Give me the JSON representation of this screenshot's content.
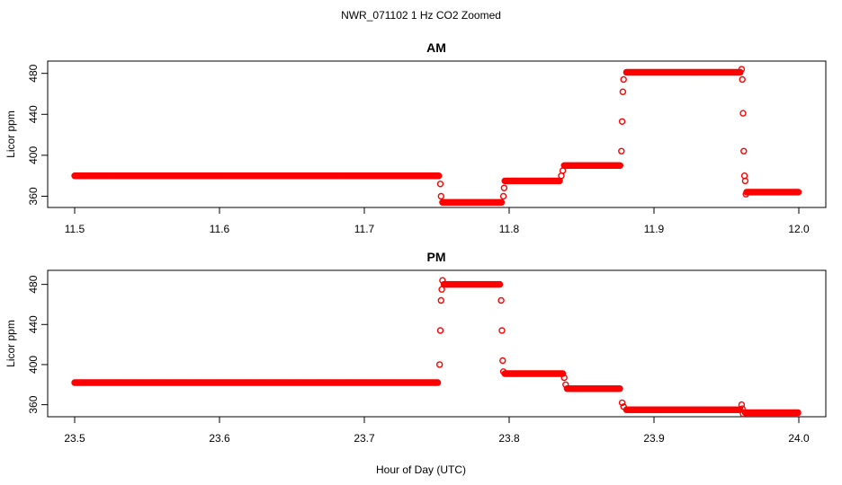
{
  "figure": {
    "title": "NWR_071102  1 Hz CO2 Zoomed",
    "xlabel": "Hour of Day (UTC)",
    "point_color": "#ff0000"
  },
  "chart_data": [
    {
      "type": "scatter",
      "title": "AM",
      "xlabel": "",
      "ylabel": "Licor ppm",
      "xlim": [
        11.5,
        12.0
      ],
      "ylim": [
        349,
        492
      ],
      "xticks": [
        "11.5",
        "11.6",
        "11.7",
        "11.8",
        "11.9",
        "12.0"
      ],
      "yticks": [
        "360",
        "400",
        "440",
        "480"
      ],
      "grid": false,
      "segments": [
        {
          "x": [
            11.5,
            11.752
          ],
          "y": 380
        },
        {
          "x": [
            11.754,
            11.795
          ],
          "y": 354
        },
        {
          "x": [
            11.797,
            11.835
          ],
          "y": 375
        },
        {
          "x": [
            11.838,
            11.877
          ],
          "y": 390
        },
        {
          "x": [
            11.881,
            11.96
          ],
          "y": 481
        },
        {
          "x": [
            11.964,
            12.0
          ],
          "y": 364
        }
      ],
      "transition_points": [
        {
          "x": 11.7525,
          "y": 372
        },
        {
          "x": 11.753,
          "y": 360
        },
        {
          "x": 11.796,
          "y": 360
        },
        {
          "x": 11.7965,
          "y": 368
        },
        {
          "x": 11.836,
          "y": 380
        },
        {
          "x": 11.837,
          "y": 385
        },
        {
          "x": 11.8775,
          "y": 404
        },
        {
          "x": 11.878,
          "y": 433
        },
        {
          "x": 11.8785,
          "y": 462
        },
        {
          "x": 11.879,
          "y": 474
        },
        {
          "x": 11.9605,
          "y": 484
        },
        {
          "x": 11.961,
          "y": 474
        },
        {
          "x": 11.9615,
          "y": 441
        },
        {
          "x": 11.962,
          "y": 404
        },
        {
          "x": 11.9625,
          "y": 380
        },
        {
          "x": 11.963,
          "y": 375
        },
        {
          "x": 11.9635,
          "y": 362
        }
      ]
    },
    {
      "type": "scatter",
      "title": "PM",
      "xlabel": "",
      "ylabel": "Licor ppm",
      "xlim": [
        23.5,
        24.0
      ],
      "ylim": [
        348,
        494
      ],
      "xticks": [
        "23.5",
        "23.6",
        "23.7",
        "23.8",
        "23.9",
        "24.0"
      ],
      "yticks": [
        "360",
        "400",
        "440",
        "480"
      ],
      "grid": false,
      "segments": [
        {
          "x": [
            23.5,
            23.751
          ],
          "y": 382
        },
        {
          "x": [
            23.755,
            23.794
          ],
          "y": 480
        },
        {
          "x": [
            23.797,
            23.837
          ],
          "y": 391
        },
        {
          "x": [
            23.84,
            23.877
          ],
          "y": 376
        },
        {
          "x": [
            23.881,
            23.96
          ],
          "y": 355
        },
        {
          "x": [
            23.963,
            24.0
          ],
          "y": 352
        }
      ],
      "transition_points": [
        {
          "x": 23.752,
          "y": 400
        },
        {
          "x": 23.7525,
          "y": 434
        },
        {
          "x": 23.753,
          "y": 464
        },
        {
          "x": 23.7535,
          "y": 475
        },
        {
          "x": 23.754,
          "y": 484
        },
        {
          "x": 23.7945,
          "y": 464
        },
        {
          "x": 23.795,
          "y": 434
        },
        {
          "x": 23.7955,
          "y": 404
        },
        {
          "x": 23.796,
          "y": 393
        },
        {
          "x": 23.838,
          "y": 387
        },
        {
          "x": 23.839,
          "y": 380
        },
        {
          "x": 23.878,
          "y": 362
        },
        {
          "x": 23.879,
          "y": 358
        },
        {
          "x": 23.9605,
          "y": 360
        },
        {
          "x": 23.961,
          "y": 356
        },
        {
          "x": 23.9615,
          "y": 351
        }
      ]
    }
  ]
}
